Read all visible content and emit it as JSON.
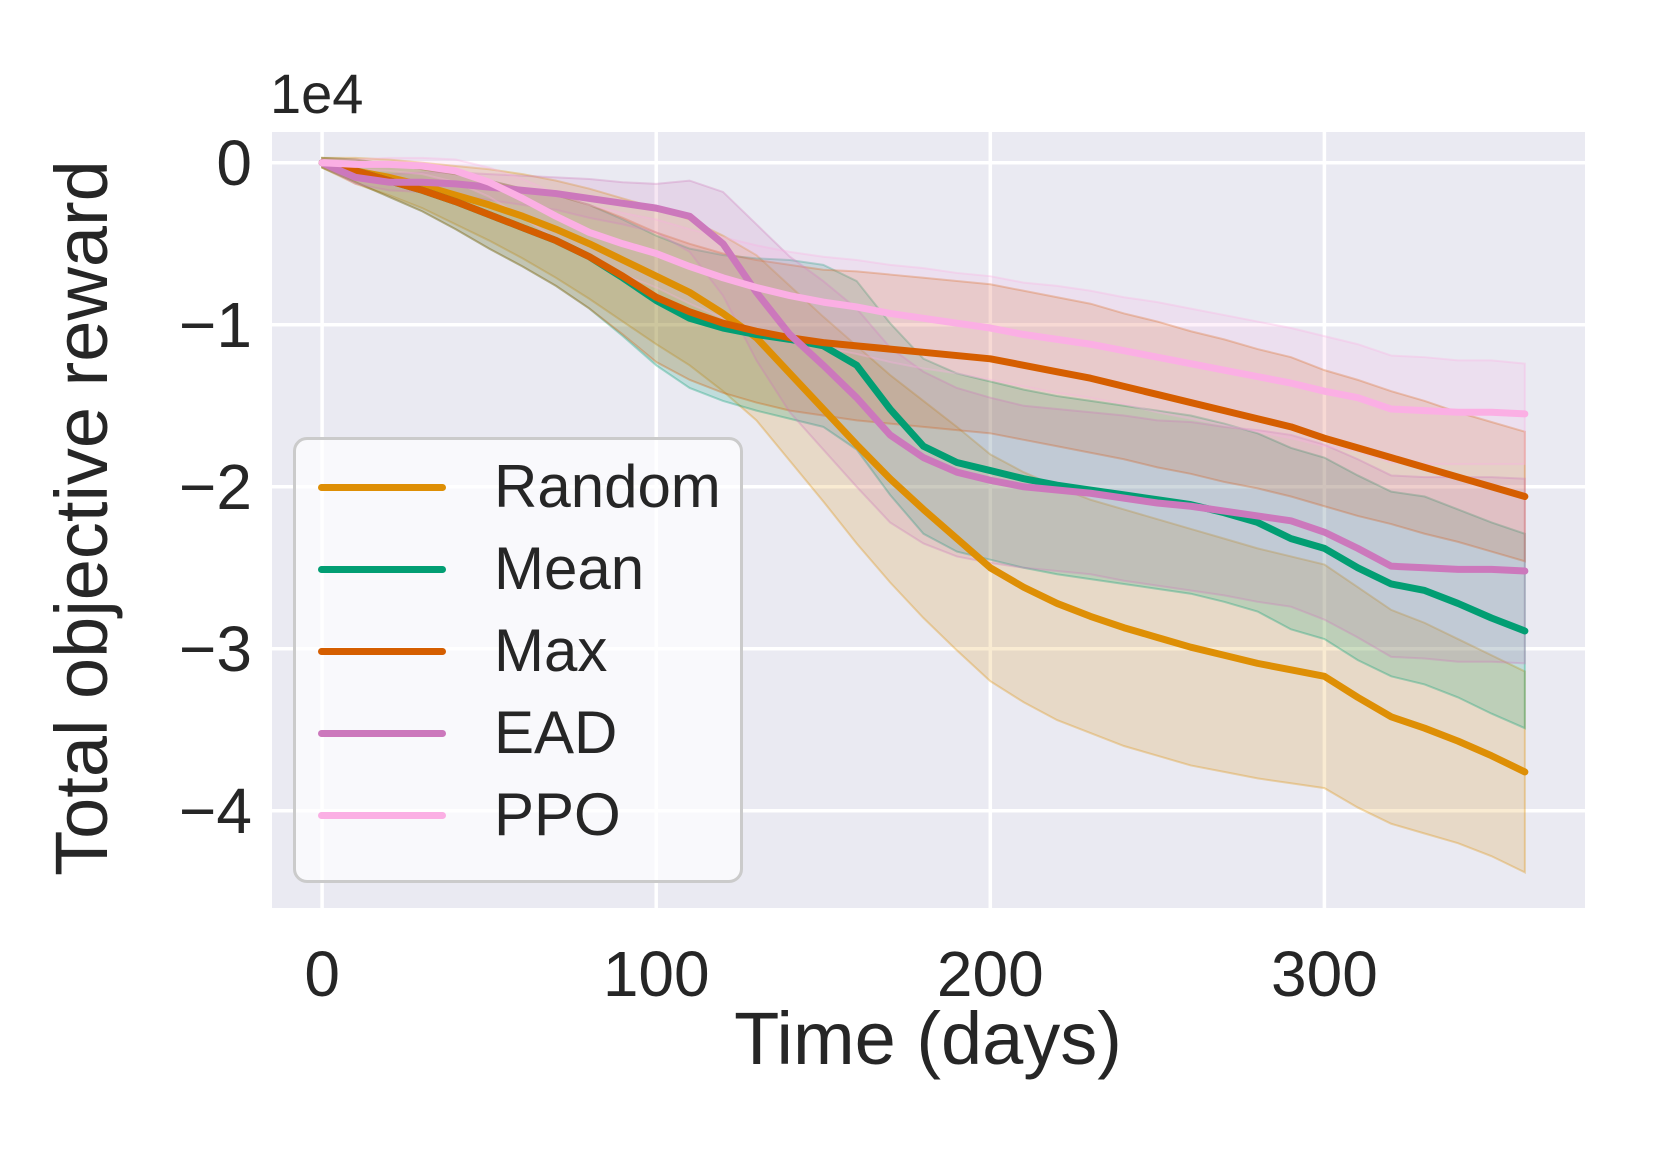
{
  "styles": {
    "figure_bg": "#FFFFFF",
    "plot_bg": "#EAEAF2",
    "grid_color": "#FFFFFF",
    "text_color": "#262626",
    "legend_border": "#CBCBCB",
    "legend_bg": "rgba(255,255,255,0.72)",
    "band_alpha": 0.18,
    "line_width": 7
  },
  "chart_data": {
    "type": "line",
    "title": "",
    "xlabel": "Time (days)",
    "ylabel": "Total objective reward",
    "y_offset_label": "1e4",
    "y_unit_multiplier": 10000,
    "grid": true,
    "legend_position": "lower left",
    "xlim": [
      -15,
      378
    ],
    "ylim": [
      -4.6,
      0.19
    ],
    "x_tick_values": [
      0,
      100,
      200,
      300
    ],
    "x_tick_labels": [
      "0",
      "100",
      "200",
      "300"
    ],
    "y_tick_values": [
      0,
      -1,
      -2,
      -3,
      -4
    ],
    "y_tick_labels": [
      "0",
      "−1",
      "−2",
      "−3",
      "−4"
    ],
    "x": [
      0,
      10,
      20,
      30,
      40,
      50,
      60,
      70,
      80,
      90,
      100,
      110,
      120,
      130,
      140,
      150,
      160,
      170,
      180,
      190,
      200,
      210,
      220,
      230,
      240,
      250,
      260,
      270,
      280,
      290,
      300,
      310,
      320,
      330,
      340,
      350,
      360
    ],
    "series": [
      {
        "name": "Random",
        "color": "#DE8F05",
        "values": [
          0,
          -0.05,
          -0.09,
          -0.14,
          -0.2,
          -0.26,
          -0.33,
          -0.41,
          -0.5,
          -0.6,
          -0.7,
          -0.8,
          -0.93,
          -1.08,
          -1.3,
          -1.52,
          -1.74,
          -1.95,
          -2.14,
          -2.32,
          -2.5,
          -2.62,
          -2.72,
          -2.8,
          -2.87,
          -2.93,
          -2.99,
          -3.04,
          -3.09,
          -3.13,
          -3.17,
          -3.3,
          -3.42,
          -3.49,
          -3.57,
          -3.66,
          -3.76
        ],
        "band_halfwidth": [
          0.03,
          0.08,
          0.11,
          0.14,
          0.18,
          0.22,
          0.26,
          0.3,
          0.34,
          0.38,
          0.42,
          0.45,
          0.48,
          0.51,
          0.54,
          0.57,
          0.61,
          0.64,
          0.67,
          0.69,
          0.7,
          0.71,
          0.72,
          0.72,
          0.73,
          0.73,
          0.73,
          0.72,
          0.71,
          0.7,
          0.69,
          0.68,
          0.66,
          0.65,
          0.63,
          0.62,
          0.62
        ]
      },
      {
        "name": "Mean",
        "color": "#029E73",
        "values": [
          0,
          -0.05,
          -0.11,
          -0.17,
          -0.24,
          -0.32,
          -0.4,
          -0.48,
          -0.58,
          -0.71,
          -0.85,
          -0.96,
          -1.02,
          -1.06,
          -1.09,
          -1.13,
          -1.25,
          -1.52,
          -1.75,
          -1.85,
          -1.9,
          -1.95,
          -1.99,
          -2.02,
          -2.05,
          -2.08,
          -2.11,
          -2.16,
          -2.22,
          -2.32,
          -2.38,
          -2.5,
          -2.6,
          -2.64,
          -2.72,
          -2.81,
          -2.89
        ],
        "band_halfwidth": [
          0.03,
          0.07,
          0.1,
          0.13,
          0.17,
          0.21,
          0.24,
          0.28,
          0.32,
          0.36,
          0.4,
          0.43,
          0.45,
          0.47,
          0.49,
          0.5,
          0.52,
          0.53,
          0.54,
          0.55,
          0.55,
          0.55,
          0.55,
          0.55,
          0.55,
          0.55,
          0.55,
          0.55,
          0.55,
          0.56,
          0.56,
          0.57,
          0.57,
          0.58,
          0.58,
          0.59,
          0.6
        ]
      },
      {
        "name": "Max",
        "color": "#D55E00",
        "values": [
          0,
          -0.05,
          -0.11,
          -0.17,
          -0.24,
          -0.32,
          -0.4,
          -0.48,
          -0.58,
          -0.7,
          -0.83,
          -0.92,
          -0.99,
          -1.04,
          -1.08,
          -1.11,
          -1.13,
          -1.15,
          -1.17,
          -1.19,
          -1.21,
          -1.25,
          -1.29,
          -1.33,
          -1.38,
          -1.43,
          -1.48,
          -1.53,
          -1.58,
          -1.63,
          -1.7,
          -1.76,
          -1.82,
          -1.88,
          -1.94,
          -2.0,
          -2.06
        ],
        "band_halfwidth": [
          0.03,
          0.07,
          0.1,
          0.13,
          0.17,
          0.21,
          0.24,
          0.28,
          0.32,
          0.36,
          0.4,
          0.42,
          0.43,
          0.44,
          0.45,
          0.45,
          0.46,
          0.46,
          0.46,
          0.46,
          0.46,
          0.46,
          0.46,
          0.46,
          0.45,
          0.45,
          0.44,
          0.44,
          0.43,
          0.43,
          0.42,
          0.42,
          0.41,
          0.41,
          0.4,
          0.4,
          0.4
        ]
      },
      {
        "name": "EAD",
        "color": "#CC78BC",
        "values": [
          0,
          -0.09,
          -0.12,
          -0.12,
          -0.13,
          -0.15,
          -0.17,
          -0.19,
          -0.22,
          -0.25,
          -0.28,
          -0.33,
          -0.5,
          -0.8,
          -1.06,
          -1.25,
          -1.45,
          -1.68,
          -1.82,
          -1.91,
          -1.96,
          -2.0,
          -2.02,
          -2.04,
          -2.07,
          -2.1,
          -2.12,
          -2.15,
          -2.18,
          -2.21,
          -2.28,
          -2.38,
          -2.49,
          -2.5,
          -2.51,
          -2.51,
          -2.52
        ],
        "band_halfwidth": [
          0.02,
          0.04,
          0.05,
          0.06,
          0.07,
          0.08,
          0.09,
          0.1,
          0.12,
          0.13,
          0.15,
          0.22,
          0.32,
          0.42,
          0.48,
          0.52,
          0.55,
          0.54,
          0.53,
          0.52,
          0.51,
          0.5,
          0.5,
          0.5,
          0.51,
          0.51,
          0.52,
          0.52,
          0.53,
          0.53,
          0.54,
          0.55,
          0.56,
          0.56,
          0.57,
          0.57,
          0.57
        ]
      },
      {
        "name": "PPO",
        "color": "#FBAFE4",
        "values": [
          0,
          -0.01,
          -0.01,
          -0.02,
          -0.05,
          -0.12,
          -0.22,
          -0.33,
          -0.43,
          -0.5,
          -0.56,
          -0.64,
          -0.71,
          -0.77,
          -0.82,
          -0.86,
          -0.89,
          -0.93,
          -0.96,
          -0.99,
          -1.02,
          -1.06,
          -1.09,
          -1.12,
          -1.16,
          -1.2,
          -1.24,
          -1.28,
          -1.32,
          -1.36,
          -1.41,
          -1.45,
          -1.52,
          -1.53,
          -1.54,
          -1.54,
          -1.55
        ],
        "band_halfwidth": [
          0.02,
          0.03,
          0.04,
          0.05,
          0.07,
          0.09,
          0.12,
          0.14,
          0.17,
          0.19,
          0.21,
          0.23,
          0.25,
          0.26,
          0.27,
          0.28,
          0.29,
          0.3,
          0.31,
          0.31,
          0.32,
          0.32,
          0.33,
          0.33,
          0.33,
          0.34,
          0.34,
          0.34,
          0.34,
          0.34,
          0.34,
          0.33,
          0.33,
          0.33,
          0.32,
          0.32,
          0.31
        ]
      }
    ]
  }
}
